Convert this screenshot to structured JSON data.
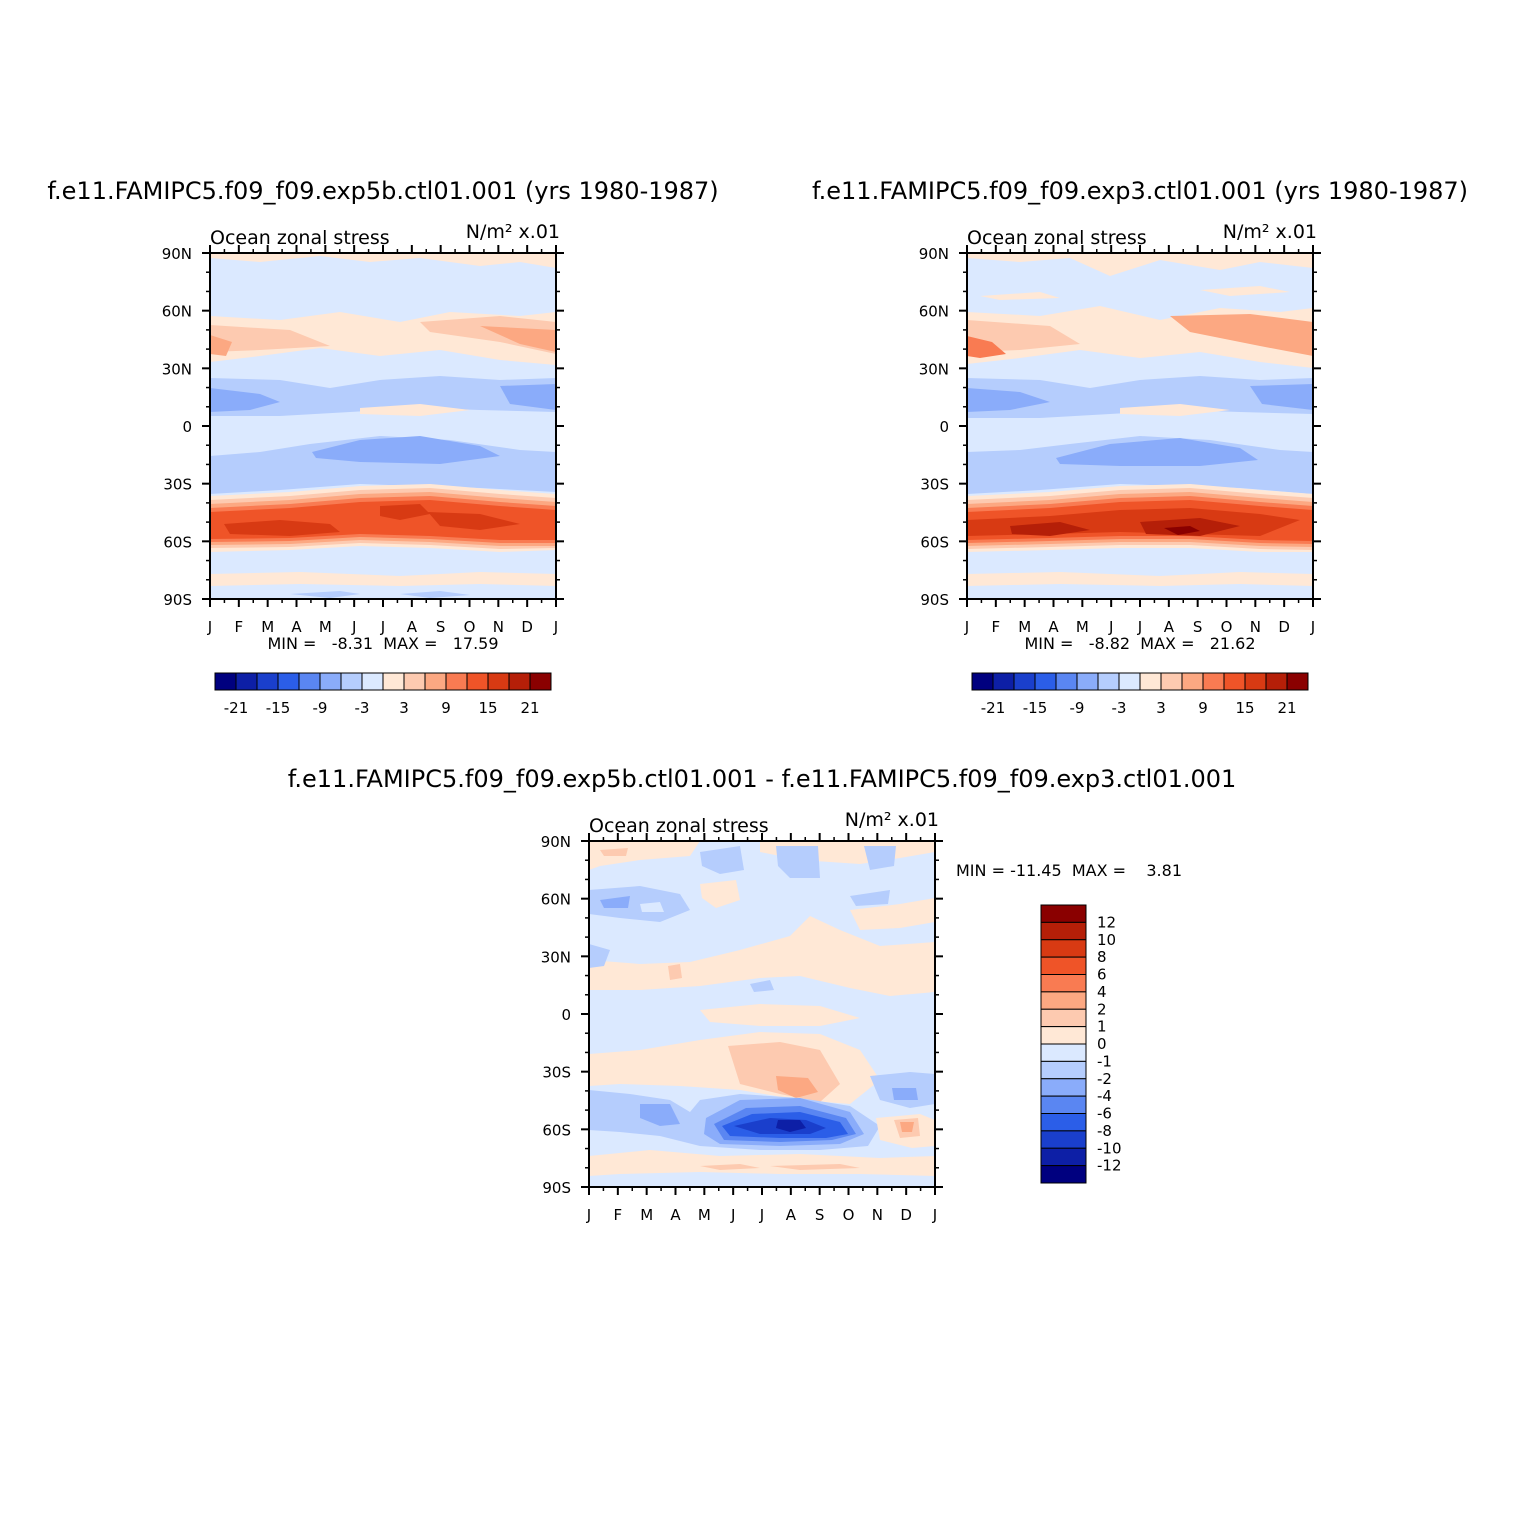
{
  "chart_data": [
    {
      "type": "heatmap",
      "title": "f.e11.FAMIPC5.f09_f09.exp5b.ctl01.001 (yrs 1980-1987)",
      "subtitle_left": "Ocean zonal stress",
      "subtitle_right": "N/m² x.01",
      "xlabel": "",
      "ylabel": "",
      "x_ticks": [
        "J",
        "F",
        "M",
        "A",
        "M",
        "J",
        "J",
        "A",
        "S",
        "O",
        "N",
        "D",
        "J"
      ],
      "y_ticks": [
        "90N",
        "60N",
        "30N",
        "0",
        "30S",
        "60S",
        "90S"
      ],
      "ylim": [
        -90,
        90
      ],
      "stats_label": "MIN =   -8.31  MAX =   17.59",
      "min": -8.31,
      "max": 17.59,
      "colorbar_ticks": [
        "-21",
        "-15",
        "-9",
        "-3",
        "3",
        "9",
        "15",
        "21"
      ],
      "zonal_profile": [
        {
          "lat": 85,
          "value": 1
        },
        {
          "lat": 70,
          "value": -1
        },
        {
          "lat": 40,
          "value": 4
        },
        {
          "lat": 20,
          "value": -2
        },
        {
          "lat": 10,
          "value": -5
        },
        {
          "lat": 0,
          "value": -1
        },
        {
          "lat": -15,
          "value": -5
        },
        {
          "lat": -35,
          "value": 3
        },
        {
          "lat": -55,
          "value": 15
        },
        {
          "lat": -70,
          "value": -1
        },
        {
          "lat": -82,
          "value": 1
        }
      ]
    },
    {
      "type": "heatmap",
      "title": "f.e11.FAMIPC5.f09_f09.exp3.ctl01.001 (yrs 1980-1987)",
      "subtitle_left": "Ocean zonal stress",
      "subtitle_right": "N/m² x.01",
      "xlabel": "",
      "ylabel": "",
      "x_ticks": [
        "J",
        "F",
        "M",
        "A",
        "M",
        "J",
        "J",
        "A",
        "S",
        "O",
        "N",
        "D",
        "J"
      ],
      "y_ticks": [
        "90N",
        "60N",
        "30N",
        "0",
        "30S",
        "60S",
        "90S"
      ],
      "ylim": [
        -90,
        90
      ],
      "stats_label": "MIN =   -8.82  MAX =   21.62",
      "min": -8.82,
      "max": 21.62,
      "colorbar_ticks": [
        "-21",
        "-15",
        "-9",
        "-3",
        "3",
        "9",
        "15",
        "21"
      ],
      "zonal_profile": [
        {
          "lat": 85,
          "value": 1
        },
        {
          "lat": 70,
          "value": -1
        },
        {
          "lat": 40,
          "value": 4
        },
        {
          "lat": 20,
          "value": -2
        },
        {
          "lat": 10,
          "value": -5
        },
        {
          "lat": 0,
          "value": -1
        },
        {
          "lat": -15,
          "value": -5
        },
        {
          "lat": -35,
          "value": 3
        },
        {
          "lat": -56,
          "value": 18
        },
        {
          "lat": -70,
          "value": -1
        },
        {
          "lat": -82,
          "value": 1
        }
      ]
    },
    {
      "type": "heatmap",
      "title": "f.e11.FAMIPC5.f09_f09.exp5b.ctl01.001 - f.e11.FAMIPC5.f09_f09.exp3.ctl01.001",
      "subtitle_left": "Ocean zonal stress",
      "subtitle_right": "N/m² x.01",
      "xlabel": "",
      "ylabel": "",
      "x_ticks": [
        "J",
        "F",
        "M",
        "A",
        "M",
        "J",
        "J",
        "A",
        "S",
        "O",
        "N",
        "D",
        "J"
      ],
      "y_ticks": [
        "90N",
        "60N",
        "30N",
        "0",
        "30S",
        "60S",
        "90S"
      ],
      "ylim": [
        -90,
        90
      ],
      "stats_label": "MIN = -11.45  MAX =    3.81",
      "min": -11.45,
      "max": 3.81,
      "colorbar_ticks": [
        "12",
        "10",
        "8",
        "6",
        "4",
        "2",
        "1",
        "0",
        "-1",
        "-2",
        "-4",
        "-6",
        "-8",
        "-10",
        "-12"
      ],
      "notable_features": [
        {
          "label": "negative core",
          "month": "Aug",
          "lat": -57,
          "value": -11
        },
        {
          "label": "positive patch",
          "month": "Aug",
          "lat": -38,
          "value": 3
        },
        {
          "label": "positive patch",
          "month": "Dec",
          "lat": -57,
          "value": 3
        }
      ]
    }
  ],
  "colors": {
    "abs_levels": [
      "#00007f",
      "#0d1fa6",
      "#1a3fcc",
      "#2b5ee8",
      "#5a86f2",
      "#8aacfa",
      "#b5cdfd",
      "#dbe9ff",
      "#ffe8d6",
      "#fdcab0",
      "#fca882",
      "#f97b52",
      "#ef5428",
      "#d83a13",
      "#b51f08",
      "#8a0000"
    ],
    "diff_levels": [
      "#8a0000",
      "#b51f08",
      "#d83a13",
      "#ef5428",
      "#f97b52",
      "#fca882",
      "#fdcab0",
      "#ffe8d6",
      "#dbe9ff",
      "#b5cdfd",
      "#8aacfa",
      "#5a86f2",
      "#2b5ee8",
      "#1a3fcc",
      "#0d1fa6",
      "#00007f"
    ]
  }
}
